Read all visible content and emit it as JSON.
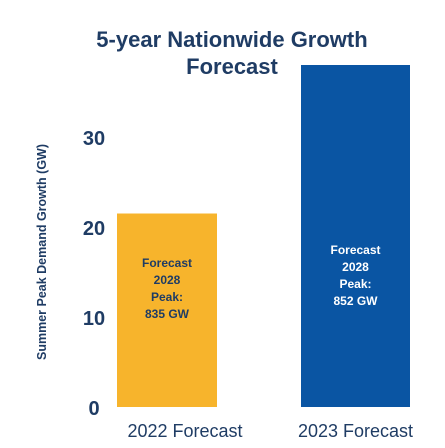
{
  "chart_data": {
    "type": "bar",
    "title": "5-year Nationwide Growth Forecast",
    "title_lines": [
      "5-year Nationwide Growth",
      "Forecast"
    ],
    "ylabel": "Summer Peak Demand Growth (GW)",
    "xlabel": "",
    "ylim": [
      0,
      38
    ],
    "y_ticks": [
      0,
      10,
      20,
      30
    ],
    "categories": [
      "2022 Forecast",
      "2023 Forecast"
    ],
    "values": [
      21.5,
      38
    ],
    "bar_labels": [
      [
        "Forecast",
        "2028",
        "Peak:",
        "835 GW"
      ],
      [
        "Forecast",
        "2028",
        "Peak:",
        "852 GW"
      ]
    ],
    "grid": false,
    "legend": "none",
    "colors": {
      "bar_2022": "#f7b42c",
      "bar_2023": "#0a55a3",
      "title": "#1f3c64",
      "axis_text": "#1f3c64",
      "label_2022": "#1f3c64",
      "label_2023": "#ffffff"
    }
  }
}
